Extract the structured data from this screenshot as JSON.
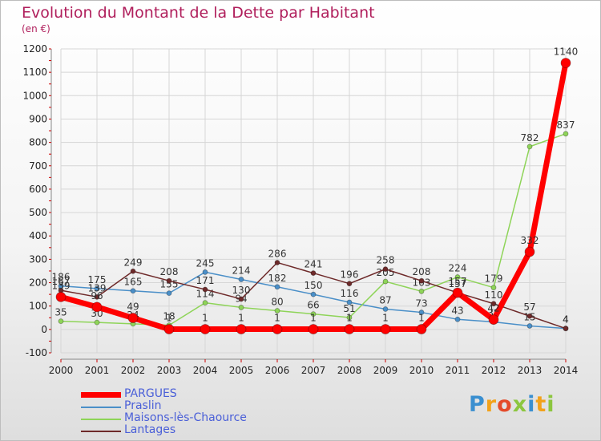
{
  "header": {
    "title": "Evolution du Montant de la Dette par Habitant",
    "subtitle": "(en €)"
  },
  "brand": {
    "logo_text": "Proxiti"
  },
  "chart_data": {
    "type": "line",
    "title": "Evolution du Montant de la Dette par Habitant",
    "ylabel": "(en €)",
    "xlabel": "",
    "ylim": [
      -100,
      1200
    ],
    "yticks": [
      -100,
      0,
      100,
      200,
      300,
      400,
      500,
      600,
      700,
      800,
      900,
      1000,
      1100,
      1200
    ],
    "categories": [
      "2000",
      "2001",
      "2002",
      "2003",
      "2004",
      "2005",
      "2006",
      "2007",
      "2008",
      "2009",
      "2010",
      "2011",
      "2012",
      "2013",
      "2014"
    ],
    "series": [
      {
        "name": "Praslin",
        "color": "#4a8fc8",
        "values": [
          186,
          175,
          165,
          155,
          245,
          214,
          182,
          150,
          116,
          87,
          73,
          43,
          32,
          15,
          4
        ]
      },
      {
        "name": "Maisons-lès-Chaource",
        "color": "#8ed458",
        "values": [
          35,
          30,
          24,
          18,
          114,
          94,
          80,
          66,
          51,
          205,
          163,
          224,
          179,
          782,
          837
        ]
      },
      {
        "name": "Lantages",
        "color": "#6e2a2a",
        "values": [
          167,
          139,
          249,
          208,
          171,
          130,
          286,
          241,
          196,
          258,
          208,
          157,
          110,
          57,
          4
        ]
      },
      {
        "name": "PARGUES",
        "color": "#ff0000",
        "values": [
          139,
          96,
          49,
          1,
          1,
          1,
          1,
          1,
          1,
          1,
          1,
          157,
          42,
          332,
          1140
        ]
      }
    ],
    "legend_order": [
      "PARGUES",
      "Praslin",
      "Maisons-lès-Chaource",
      "Lantages"
    ],
    "grid": true
  }
}
